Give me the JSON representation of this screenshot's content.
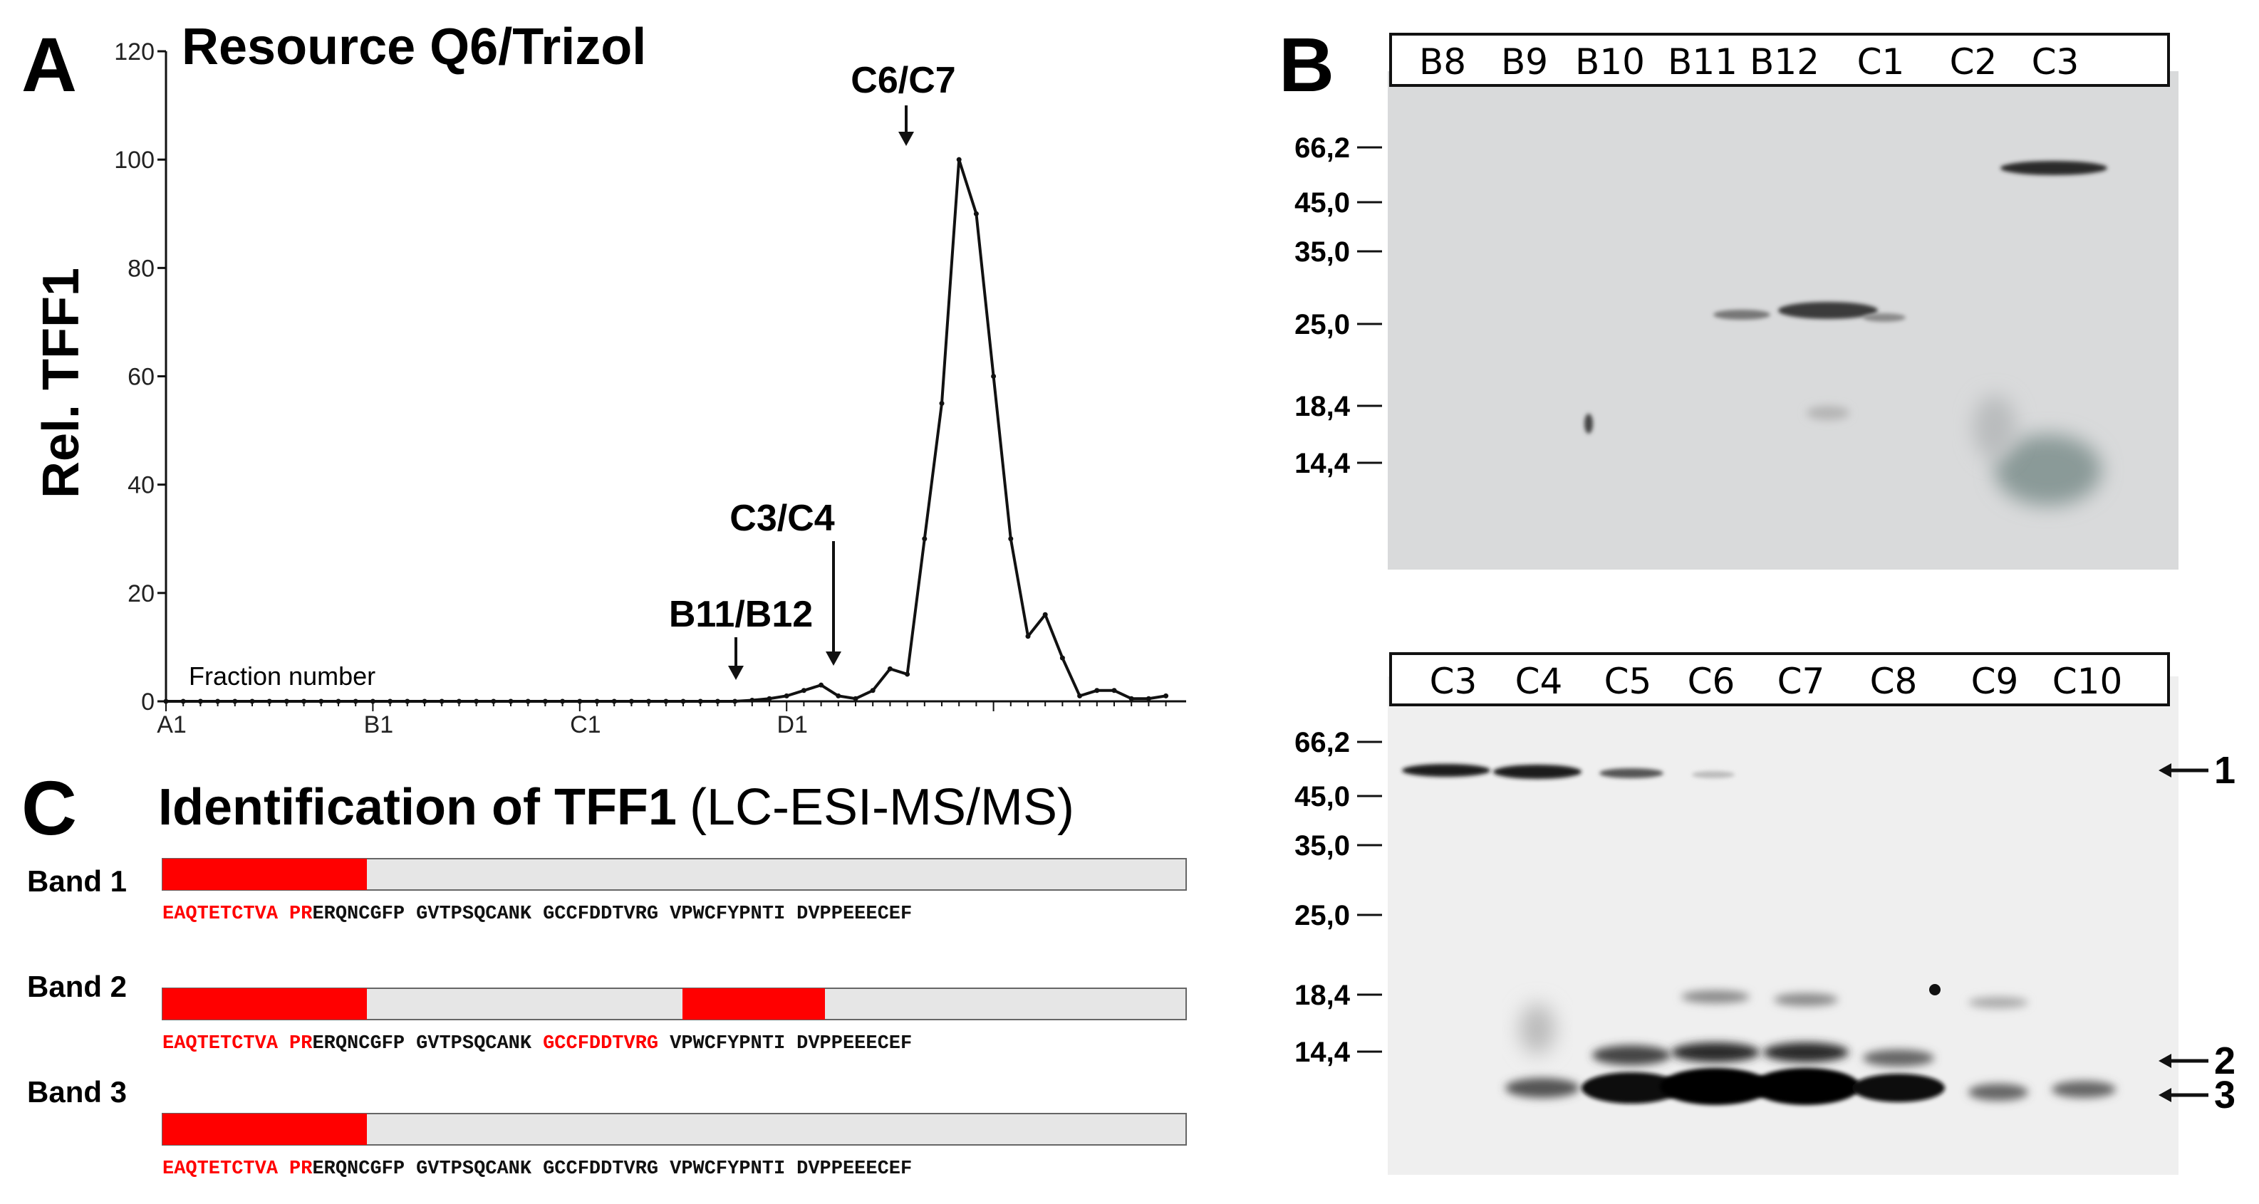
{
  "panel_a": {
    "letter": "A",
    "title": "Resource Q6/Trizol",
    "ylabel": "Rel. TFF1",
    "xlabel": "Fraction number",
    "annotations": [
      "C6/C7",
      "C3/C4",
      "B11/B12"
    ]
  },
  "chart_data": {
    "type": "line",
    "title": "Resource Q6/Trizol",
    "xlabel": "Fraction number",
    "ylabel": "Rel. TFF1",
    "ylim": [
      0,
      120
    ],
    "yticks": [
      0,
      20,
      40,
      60,
      80,
      100,
      120
    ],
    "xticks": [
      "A1",
      "B1",
      "C1",
      "D1"
    ],
    "series": [
      {
        "values": [
          0,
          0,
          0,
          0,
          0,
          0,
          0,
          0,
          0,
          0,
          0,
          0,
          0,
          0,
          0,
          0,
          0,
          0,
          0,
          0,
          0,
          0,
          0,
          0,
          0,
          0,
          0,
          0,
          0,
          0,
          0,
          0,
          0,
          0,
          0.2,
          0.5,
          1,
          2,
          3,
          1,
          0.5,
          2,
          6,
          5,
          30,
          55,
          100,
          90,
          60,
          30,
          12,
          16,
          8,
          1,
          2,
          2,
          0.5,
          0.5,
          1
        ]
      }
    ],
    "annotations": [
      {
        "label": "C6/C7",
        "x_index": 46
      },
      {
        "label": "C3/C4",
        "x_index": 42
      },
      {
        "label": "B11/B12",
        "x_index": 38
      }
    ]
  },
  "panel_b": {
    "letter": "B",
    "top_lanes": [
      "B8",
      "B9",
      "B10",
      "B11",
      "B12",
      "C1",
      "C2",
      "C3"
    ],
    "top_markers": [
      "66,2",
      "45,0",
      "35,0",
      "25,0",
      "18,4",
      "14,4"
    ],
    "bottom_lanes": [
      "C3",
      "C4",
      "C5",
      "C6",
      "C7",
      "C8",
      "C9",
      "C10"
    ],
    "bottom_markers": [
      "66,2",
      "45,0",
      "35,0",
      "25,0",
      "18,4",
      "14,4"
    ],
    "band_arrows": [
      "1",
      "2",
      "3"
    ]
  },
  "panel_c": {
    "letter": "C",
    "title": "Identification of TFF1",
    "title_suffix": "(LC-ESI-MS/MS)",
    "sequence_parts": [
      "EAQTETCTVA",
      "PR",
      "ERQNCGFP",
      "GVTPSQCANK",
      "GCCFDDTVRG",
      "VPWCFYPNTI",
      "DVPPEEECEF"
    ],
    "bands": [
      {
        "label": "Band 1"
      },
      {
        "label": "Band 2"
      },
      {
        "label": "Band 3"
      }
    ]
  },
  "colors": {
    "highlight": "#ff0000",
    "bar": "#e6e6e6",
    "line": "#111111",
    "gel": "#d9dadb"
  }
}
